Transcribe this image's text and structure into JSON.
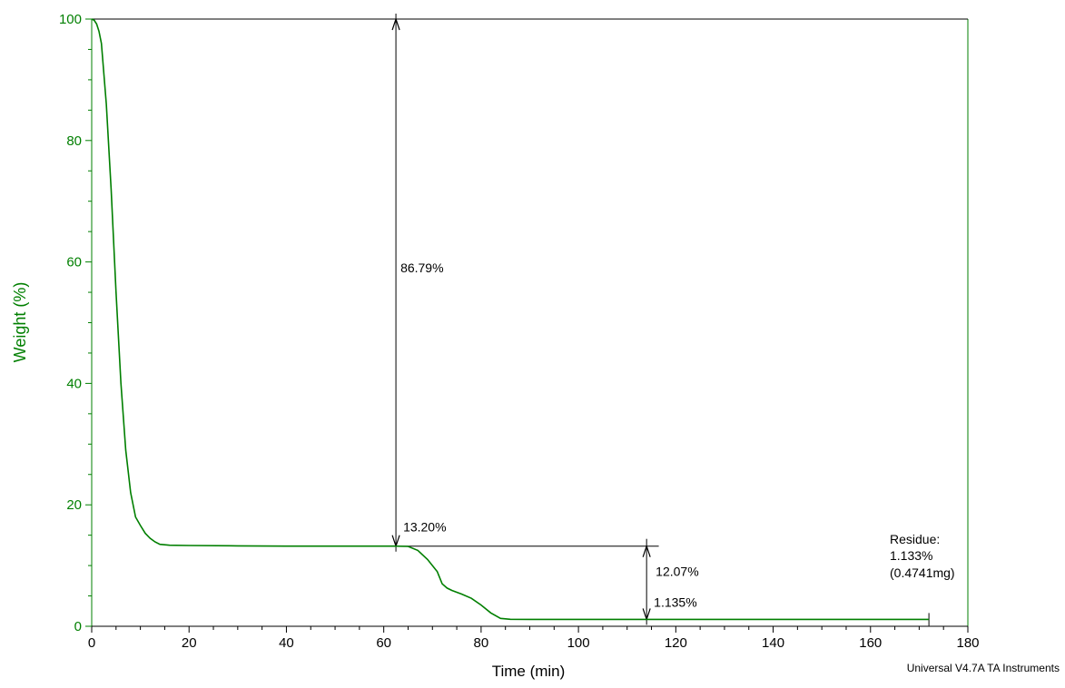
{
  "chart_data": {
    "type": "line",
    "title": "",
    "xlabel": "Time (min)",
    "ylabel": "Weight (%)",
    "xlim": [
      0,
      180
    ],
    "ylim": [
      0,
      100
    ],
    "grid": false,
    "x_ticks": [
      0,
      20,
      40,
      60,
      80,
      100,
      120,
      140,
      160,
      180
    ],
    "y_ticks": [
      0,
      20,
      40,
      60,
      80,
      100
    ],
    "series": [
      {
        "x": [
          0,
          0.5,
          1,
          1.5,
          2,
          3,
          4,
          5,
          6,
          7,
          8,
          9,
          10,
          11,
          12,
          13,
          14,
          16,
          20,
          30,
          40,
          50,
          60,
          62.5,
          65,
          67,
          69,
          71,
          72,
          73,
          74,
          76,
          78,
          80,
          82,
          84,
          86,
          90,
          100,
          110,
          114,
          120,
          140,
          160,
          172
        ],
        "y": [
          100,
          99.8,
          99.2,
          98,
          96,
          86,
          72,
          55,
          40,
          29,
          22,
          18,
          16.6,
          15.3,
          14.5,
          13.9,
          13.5,
          13.35,
          13.3,
          13.25,
          13.2,
          13.2,
          13.2,
          13.2,
          13.15,
          12.5,
          11,
          9,
          7,
          6.3,
          5.9,
          5.3,
          4.6,
          3.5,
          2.2,
          1.3,
          1.15,
          1.13,
          1.13,
          1.135,
          1.135,
          1.135,
          1.134,
          1.133,
          1.133
        ],
        "color": "#007f00"
      }
    ],
    "annotations": [
      {
        "text": "86.79%",
        "x": 63,
        "y": 58.3
      },
      {
        "text": "13.20%",
        "x": 63,
        "y": 15.1
      },
      {
        "text": "12.07%",
        "x": 115,
        "y": 8.5
      },
      {
        "text": "1.135%",
        "x": 115,
        "y": 3.2
      }
    ],
    "residue": {
      "label": "Residue:",
      "percent": "1.133%",
      "mass": "(0.4741mg)"
    }
  },
  "footer": "Universal V4.7A TA Instruments",
  "colors": {
    "axis_y": "#007f00",
    "axis_x": "#000000",
    "curve": "#007f00",
    "annotation": "#000000"
  }
}
